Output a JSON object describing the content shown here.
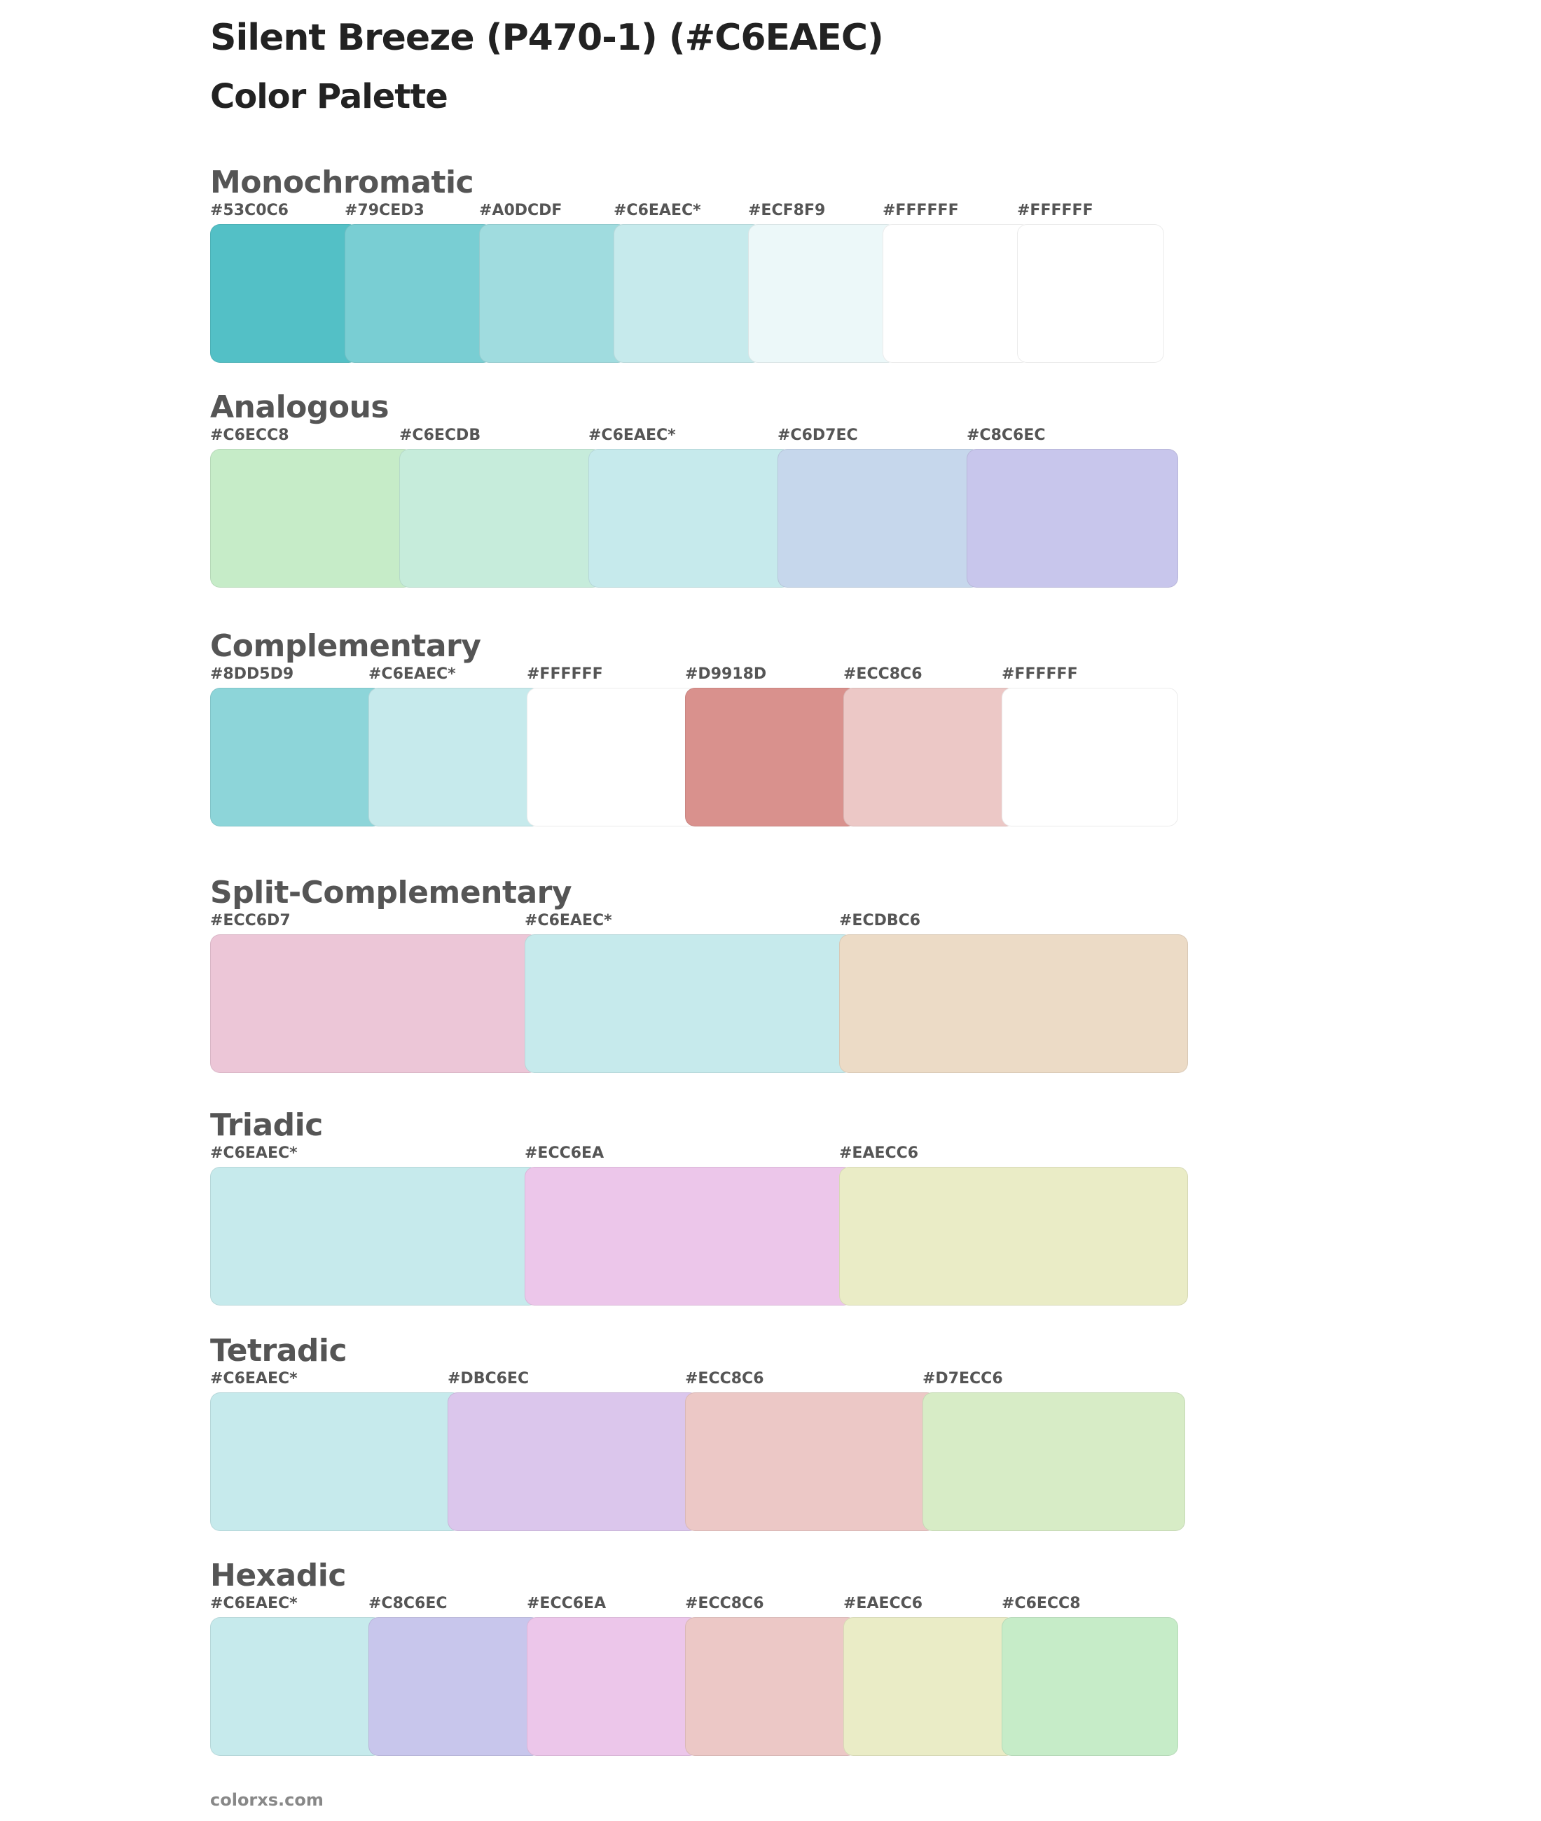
{
  "header": {
    "title": "Silent Breeze (P470-1) (#C6EAEC)",
    "subtitle": "Color Palette"
  },
  "sections": [
    {
      "name": "Monochromatic",
      "colors": [
        {
          "label": "#53C0C6",
          "hex": "#53C0C6"
        },
        {
          "label": "#79CED3",
          "hex": "#79CED3"
        },
        {
          "label": "#A0DCDF",
          "hex": "#A0DCDF"
        },
        {
          "label": "#C6EAEC*",
          "hex": "#C6EAEC"
        },
        {
          "label": "#ECF8F9",
          "hex": "#ECF8F9"
        },
        {
          "label": "#FFFFFF",
          "hex": "#FFFFFF"
        },
        {
          "label": "#FFFFFF",
          "hex": "#FFFFFF"
        }
      ]
    },
    {
      "name": "Analogous",
      "colors": [
        {
          "label": "#C6ECC8",
          "hex": "#C6ECC8"
        },
        {
          "label": "#C6ECDB",
          "hex": "#C6ECDB"
        },
        {
          "label": "#C6EAEC*",
          "hex": "#C6EAEC"
        },
        {
          "label": "#C6D7EC",
          "hex": "#C6D7EC"
        },
        {
          "label": "#C8C6EC",
          "hex": "#C8C6EC"
        }
      ]
    },
    {
      "name": "Complementary",
      "colors": [
        {
          "label": "#8DD5D9",
          "hex": "#8DD5D9"
        },
        {
          "label": "#C6EAEC*",
          "hex": "#C6EAEC"
        },
        {
          "label": "#FFFFFF",
          "hex": "#FFFFFF"
        },
        {
          "label": "#D9918D",
          "hex": "#D9918D"
        },
        {
          "label": "#ECC8C6",
          "hex": "#ECC8C6"
        },
        {
          "label": "#FFFFFF",
          "hex": "#FFFFFF"
        }
      ]
    },
    {
      "name": "Split-Complementary",
      "colors": [
        {
          "label": "#ECC6D7",
          "hex": "#ECC6D7"
        },
        {
          "label": "#C6EAEC*",
          "hex": "#C6EAEC"
        },
        {
          "label": "#ECDBC6",
          "hex": "#ECDBC6"
        }
      ]
    },
    {
      "name": "Triadic",
      "colors": [
        {
          "label": "#C6EAEC*",
          "hex": "#C6EAEC"
        },
        {
          "label": "#ECC6EA",
          "hex": "#ECC6EA"
        },
        {
          "label": "#EAECC6",
          "hex": "#EAECC6"
        }
      ]
    },
    {
      "name": "Tetradic",
      "colors": [
        {
          "label": "#C6EAEC*",
          "hex": "#C6EAEC"
        },
        {
          "label": "#DBC6EC",
          "hex": "#DBC6EC"
        },
        {
          "label": "#ECC8C6",
          "hex": "#ECC8C6"
        },
        {
          "label": "#D7ECC6",
          "hex": "#D7ECC6"
        }
      ]
    },
    {
      "name": "Hexadic",
      "colors": [
        {
          "label": "#C6EAEC*",
          "hex": "#C6EAEC"
        },
        {
          "label": "#C8C6EC",
          "hex": "#C8C6EC"
        },
        {
          "label": "#ECC6EA",
          "hex": "#ECC6EA"
        },
        {
          "label": "#ECC8C6",
          "hex": "#ECC8C6"
        },
        {
          "label": "#EAECC6",
          "hex": "#EAECC6"
        },
        {
          "label": "#C6ECC8",
          "hex": "#C6ECC8"
        }
      ]
    }
  ],
  "footer": {
    "text": "colorxs.com"
  }
}
